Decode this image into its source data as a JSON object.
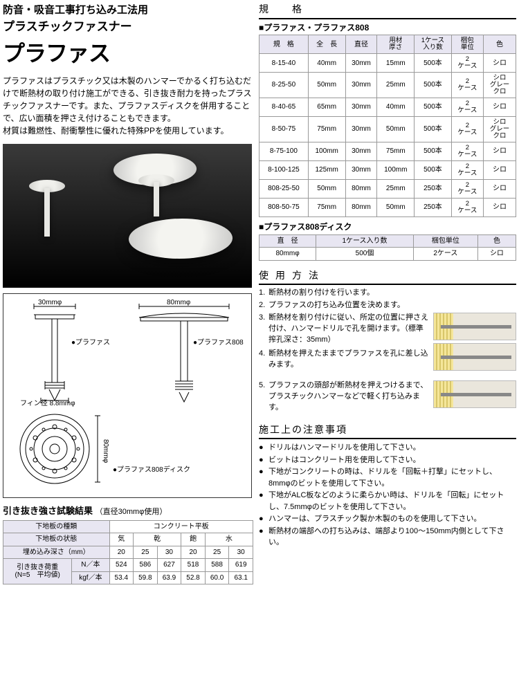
{
  "header": {
    "line1": "防音・吸音工事打ち込み工法用",
    "line2": "プラスチックファスナー",
    "title": "プラファス",
    "description": "プラファスはプラスチック又は木製のハンマーでかるく打ち込むだけで断熱材の取り付け施工ができる、引き抜き耐力を持ったプラスチックファスナーです。また、プラファスディスクを併用することで、広い面積を押さえ付けることもできます。\n材質は難燃性、耐衝撃性に優れた特殊PPを使用しています。"
  },
  "diagram": {
    "label_30mm": "30mmφ",
    "label_80mm": "80mmφ",
    "name1": "●プラファス",
    "name2": "●プラファス808",
    "fin_label": "フィン径 8.8mmφ",
    "disk_label": "●プラファス808ディスク",
    "disk_dim": "80mmφ"
  },
  "pull_test": {
    "title": "引き抜き強さ試験結果",
    "note": "（直径30mmφ使用）",
    "row1_head": "下地板の種類",
    "row1_val": "コンクリート平板",
    "row2_head": "下地板の状態",
    "row2_c1": "気",
    "row2_c2": "乾",
    "row2_c3": "飽",
    "row2_c4": "水",
    "row3_head": "埋め込み深さ（mm）",
    "row3": [
      "20",
      "25",
      "30",
      "20",
      "25",
      "30"
    ],
    "row4_head": "引き抜き荷重\n(N=5　平均値)",
    "row4_sub1": "N／本",
    "row4_vals": [
      "524",
      "586",
      "627",
      "518",
      "588",
      "619"
    ],
    "row5_sub": "kgf／本",
    "row5_vals": [
      "53.4",
      "59.8",
      "63.9",
      "52.8",
      "60.0",
      "63.1"
    ]
  },
  "spec": {
    "section_title": "規　格",
    "table1_title": "■プラファス・プラファス808",
    "cols": [
      "規　格",
      "全　長",
      "直径",
      "用材\n厚さ",
      "1ケース\n入り数",
      "梱包\n単位",
      "色"
    ],
    "rows": [
      {
        "spec": "8-15-40",
        "len": "40mm",
        "dia": "30mm",
        "thk": "15mm",
        "qty": "500本",
        "pack": "2\nケース",
        "color": "シロ"
      },
      {
        "spec": "8-25-50",
        "len": "50mm",
        "dia": "30mm",
        "thk": "25mm",
        "qty": "500本",
        "pack": "2\nケース",
        "color": "シロ\nグレー\nクロ"
      },
      {
        "spec": "8-40-65",
        "len": "65mm",
        "dia": "30mm",
        "thk": "40mm",
        "qty": "500本",
        "pack": "2\nケース",
        "color": "シロ"
      },
      {
        "spec": "8-50-75",
        "len": "75mm",
        "dia": "30mm",
        "thk": "50mm",
        "qty": "500本",
        "pack": "2\nケース",
        "color": "シロ\nグレー\nクロ"
      },
      {
        "spec": "8-75-100",
        "len": "100mm",
        "dia": "30mm",
        "thk": "75mm",
        "qty": "500本",
        "pack": "2\nケース",
        "color": "シロ"
      },
      {
        "spec": "8-100-125",
        "len": "125mm",
        "dia": "30mm",
        "thk": "100mm",
        "qty": "500本",
        "pack": "2\nケース",
        "color": "シロ"
      },
      {
        "spec": "808-25-50",
        "len": "50mm",
        "dia": "80mm",
        "thk": "25mm",
        "qty": "250本",
        "pack": "2\nケース",
        "color": "シロ"
      },
      {
        "spec": "808-50-75",
        "len": "75mm",
        "dia": "80mm",
        "thk": "50mm",
        "qty": "250本",
        "pack": "2\nケース",
        "color": "シロ"
      }
    ],
    "table2_title": "■プラファス808ディスク",
    "disk_cols": [
      "直　径",
      "1ケース入り数",
      "梱包単位",
      "色"
    ],
    "disk_row": [
      "80mmφ",
      "500個",
      "2ケース",
      "シロ"
    ]
  },
  "usage": {
    "title": "使用方法",
    "items": [
      {
        "n": "1.",
        "t": "断熱材の割り付けを行います。"
      },
      {
        "n": "2.",
        "t": "プラファスの打ち込み位置を決めます。"
      },
      {
        "n": "3.",
        "t": "断熱材を割り付けに従い、所定の位置に押さえ付け、ハンマードリルで孔を開けます。（標準搾孔深さ：35mm）"
      },
      {
        "n": "4.",
        "t": "断熱材を押えたままでプラファスを孔に差し込みます。"
      },
      {
        "n": "5.",
        "t": "プラファスの頭部が断熱材を押えつけるまで、プラスチックハンマーなどで軽く打ち込みます。"
      }
    ]
  },
  "caution": {
    "title": "施工上の注意事項",
    "items": [
      "ドリルはハンマードリルを使用して下さい。",
      "ビットはコンクリート用を使用して下さい。",
      "下地がコンクリートの時は、ドリルを「回転＋打撃」にセットし、8mmφのビットを使用して下さい。",
      "下地がALC板などのように柔らかい時は、ドリルを「回転」にセットし、7.5mmφのビットを使用して下さい。",
      "ハンマーは、プラスチック製か木製のものを使用して下さい。",
      "断熱材の端部への打ち込みは、端部より100〜150mm内側として下さい。"
    ]
  },
  "colors": {
    "th_bg": "#e8e6f2",
    "border": "#999999"
  }
}
